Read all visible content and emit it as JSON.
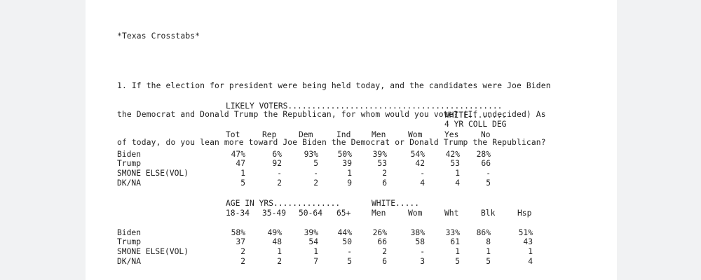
{
  "document": {
    "title": "*Texas Crosstabs*",
    "question_lines": [
      "1. If the election for president were being held today, and the candidates were Joe Biden",
      "the Democrat and Donald Trump the Republican, for whom would you vote? (If undecided) As",
      "of today, do you lean more toward Joe Biden the Democrat or Donald Trump the Republican?"
    ]
  },
  "table1": {
    "group_label": "LIKELY VOTERS.............................................",
    "subgroup_label_1": "WHITE........",
    "subgroup_label_2": "4 YR COLL DEG",
    "columns": [
      "Tot",
      "Rep",
      "Dem",
      "Ind",
      "Men",
      "Wom",
      "Yes",
      "No"
    ],
    "rows": [
      {
        "label": "Biden",
        "values": [
          "47%",
          "6%",
          "93%",
          "50%",
          "39%",
          "54%",
          "42%",
          "28%"
        ]
      },
      {
        "label": "Trump",
        "values": [
          "47",
          "92",
          "5",
          "39",
          "53",
          "42",
          "53",
          "66"
        ]
      },
      {
        "label": "SMONE ELSE(VOL)",
        "values": [
          "1",
          "-",
          "-",
          "1",
          "2",
          "-",
          "1",
          "-"
        ]
      },
      {
        "label": "DK/NA",
        "values": [
          "5",
          "2",
          "2",
          "9",
          "6",
          "4",
          "4",
          "5"
        ]
      }
    ]
  },
  "table2": {
    "group_label_age": "AGE IN YRS..............",
    "group_label_white": "WHITE.....",
    "columns": [
      "18-34",
      "35-49",
      "50-64",
      "65+",
      "Men",
      "Wom",
      "Wht",
      "Blk",
      "Hsp"
    ],
    "rows": [
      {
        "label": "Biden",
        "values": [
          "58%",
          "49%",
          "39%",
          "44%",
          "26%",
          "38%",
          "33%",
          "86%",
          "51%"
        ]
      },
      {
        "label": "Trump",
        "values": [
          "37",
          "48",
          "54",
          "50",
          "66",
          "58",
          "61",
          "8",
          "43"
        ]
      },
      {
        "label": "SMONE ELSE(VOL)",
        "values": [
          "2",
          "1",
          "1",
          "-",
          "2",
          "-",
          "1",
          "1",
          "1"
        ]
      },
      {
        "label": "DK/NA",
        "values": [
          "2",
          "2",
          "7",
          "5",
          "6",
          "3",
          "5",
          "5",
          "4"
        ]
      }
    ]
  }
}
